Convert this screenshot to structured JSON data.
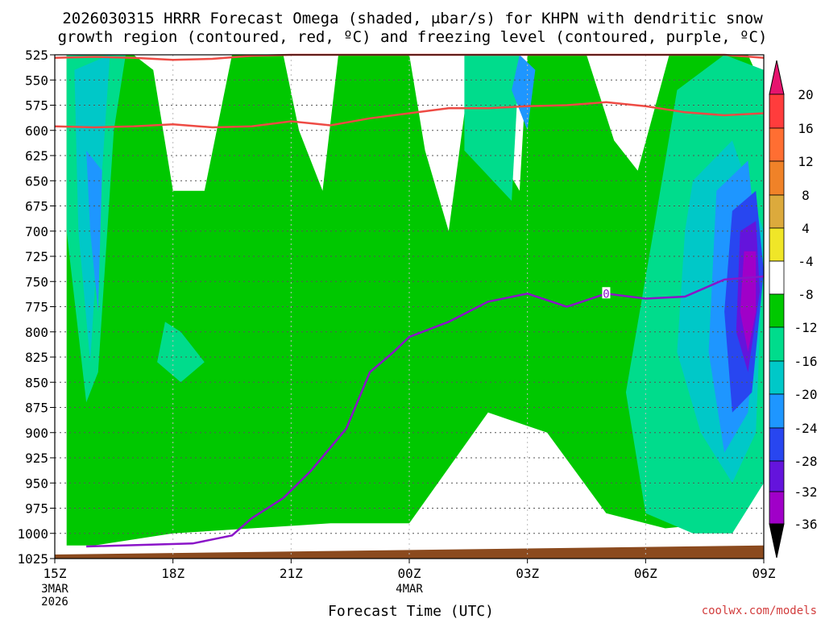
{
  "chart_data": {
    "type": "heatmap",
    "title_line1": "2026030315 HRRR Forecast Omega (shaded, μbar/s) for KHPN with dendritic snow",
    "title_line2": "growth region (contoured, red, ºC) and freezing level (contoured, purple, ºC)",
    "xlabel": "Forecast Time (UTC)",
    "ylabel": "",
    "credit": "coolwx.com/models",
    "x_ticks": [
      {
        "label": "15Z",
        "hour": 0,
        "date1": "3MAR",
        "date2": "2026"
      },
      {
        "label": "18Z",
        "hour": 3
      },
      {
        "label": "21Z",
        "hour": 6
      },
      {
        "label": "00Z",
        "hour": 9,
        "date1": "4MAR"
      },
      {
        "label": "03Z",
        "hour": 12
      },
      {
        "label": "06Z",
        "hour": 15
      },
      {
        "label": "09Z",
        "hour": 18
      }
    ],
    "xlim_hours": [
      0,
      18
    ],
    "y_ticks": [
      "525",
      "550",
      "575",
      "600",
      "625",
      "650",
      "675",
      "700",
      "725",
      "750",
      "775",
      "800",
      "825",
      "850",
      "875",
      "900",
      "925",
      "950",
      "975",
      "1000",
      "1025"
    ],
    "ylim_hPa": [
      525,
      1025
    ],
    "colorbar": {
      "labels": [
        "20",
        "16",
        "12",
        "8",
        "4",
        "-4",
        "-8",
        "-12",
        "-16",
        "-20",
        "-24",
        "-28",
        "-32",
        "-36"
      ],
      "colors": [
        "#e6146e",
        "#ff3c3c",
        "#ff6e32",
        "#f08228",
        "#dcaa3c",
        "#f0e628",
        "#ffffff",
        "#00c800",
        "#00dc8c",
        "#00c8c8",
        "#1e96ff",
        "#2846f0",
        "#6414dc",
        "#a000c8",
        "#a0a0a0",
        "#000000"
      ]
    },
    "colors": {
      "ground": "#8b4a1e",
      "dgz_contour": "#ee4b44",
      "freezing_contour": "#8a14c8"
    },
    "freezing_label": "0",
    "freezing_level": {
      "hours": [
        0.8,
        3.5,
        4.5,
        5,
        5.8,
        6.5,
        7.4,
        8.0,
        8.6,
        9.0,
        10.0,
        11.0,
        12.0,
        13.0,
        14.0,
        15.0,
        16.0,
        17.0,
        18.0
      ],
      "hPa": [
        1013,
        1010,
        1002,
        985,
        965,
        938,
        896,
        840,
        820,
        805,
        790,
        770,
        762,
        775,
        762,
        767,
        765,
        748,
        745
      ]
    },
    "dgz_upper": {
      "hours": [
        0,
        1,
        2,
        3,
        4,
        5,
        6,
        7,
        8,
        9,
        10,
        11,
        12,
        13,
        14,
        15,
        16,
        17,
        18
      ],
      "hPa": [
        528,
        527,
        528,
        530,
        529,
        526,
        525,
        525,
        525,
        525,
        525,
        525,
        525,
        525,
        525,
        525,
        525,
        525,
        528
      ]
    },
    "dgz_lower": {
      "hours": [
        0,
        1,
        2,
        3,
        4,
        5,
        6,
        7,
        8,
        9,
        10,
        11,
        12,
        13,
        14,
        15,
        16,
        17,
        18
      ],
      "hPa": [
        596,
        597,
        596,
        594,
        597,
        596,
        591,
        595,
        588,
        583,
        578,
        578,
        576,
        575,
        572,
        576,
        582,
        585,
        583
      ]
    },
    "omega_regions": [
      {
        "level": -4,
        "hours": [
          0.3,
          2.0,
          2.5,
          3.0,
          3.8,
          4.5,
          4.8,
          5.2,
          5.8,
          6.2,
          6.8,
          7.2,
          8.0,
          8.6,
          9.0,
          9.4,
          10.0,
          10.6,
          11.0,
          11.2,
          11.8,
          12.0,
          12.8,
          13.5,
          14.2,
          14.8,
          15.6,
          16.2,
          16.8,
          17.6,
          18.0,
          18.0,
          16.8,
          15.5,
          14.0,
          12.5,
          11.0,
          9.0,
          7.0,
          5.0,
          3.0,
          1.0,
          0.3
        ],
        "hPa": [
          525,
          525,
          540,
          660,
          660,
          525,
          525,
          525,
          525,
          600,
          660,
          525,
          525,
          525,
          525,
          620,
          700,
          525,
          525,
          620,
          660,
          525,
          525,
          525,
          610,
          640,
          525,
          525,
          525,
          525,
          560,
          930,
          990,
          995,
          980,
          900,
          880,
          990,
          990,
          995,
          1000,
          1012,
          1012
        ]
      },
      {
        "level": -8,
        "hours": [
          0.3,
          1.8,
          1.5,
          1.1,
          0.8,
          0.3
        ],
        "hPa": [
          525,
          525,
          600,
          840,
          870,
          700
        ]
      },
      {
        "level": -8,
        "hours": [
          2.8,
          3.2,
          3.8,
          3.2,
          2.6
        ],
        "hPa": [
          790,
          800,
          830,
          850,
          830
        ]
      },
      {
        "level": -8,
        "hours": [
          10.4,
          11.8,
          11.6,
          10.4
        ],
        "hPa": [
          525,
          525,
          670,
          620
        ]
      },
      {
        "level": -8,
        "hours": [
          15.8,
          17.0,
          18.0,
          18.0,
          17.2,
          16.2,
          15.0,
          14.5,
          15.2
        ],
        "hPa": [
          560,
          525,
          540,
          950,
          1000,
          1000,
          980,
          860,
          700
        ]
      },
      {
        "level": -12,
        "hours": [
          0.5,
          1.4,
          1.2,
          0.9,
          0.6
        ],
        "hPa": [
          540,
          525,
          640,
          830,
          700
        ]
      },
      {
        "level": -12,
        "hours": [
          16.2,
          17.2,
          18.0,
          17.8,
          17.2,
          16.4,
          15.8,
          16.0
        ],
        "hPa": [
          650,
          610,
          700,
          900,
          950,
          900,
          820,
          700
        ]
      },
      {
        "level": -16,
        "hours": [
          0.8,
          1.2,
          1.1,
          0.9
        ],
        "hPa": [
          620,
          640,
          780,
          700
        ]
      },
      {
        "level": -16,
        "hours": [
          11.8,
          12.2,
          12.0,
          11.6
        ],
        "hPa": [
          525,
          540,
          600,
          560
        ]
      },
      {
        "level": -16,
        "hours": [
          16.8,
          17.6,
          17.9,
          17.6,
          17.0,
          16.6
        ],
        "hPa": [
          660,
          630,
          740,
          880,
          920,
          820
        ]
      },
      {
        "level": -20,
        "hours": [
          17.2,
          17.8,
          18.0,
          17.7,
          17.2,
          17.0
        ],
        "hPa": [
          680,
          660,
          740,
          860,
          880,
          780
        ]
      },
      {
        "level": -24,
        "hours": [
          17.4,
          17.8,
          17.9,
          17.6,
          17.3
        ],
        "hPa": [
          700,
          690,
          760,
          840,
          800
        ]
      },
      {
        "level": -28,
        "hours": [
          17.5,
          17.8,
          17.8,
          17.6,
          17.4
        ],
        "hPa": [
          720,
          720,
          780,
          820,
          780
        ]
      }
    ]
  }
}
